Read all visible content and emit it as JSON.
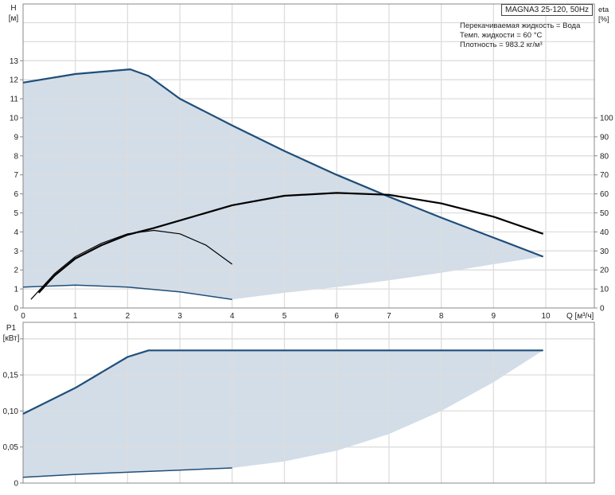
{
  "chart_data": [
    {
      "type": "line",
      "title": "MAGNA3 25-120, 50Hz",
      "annotations": [
        "Перекачиваемая жидкость = Вода",
        "Темп. жидкости = 60 °C",
        "Плотность = 983.2 кг/м³"
      ],
      "xlabel": "Q [м³/ч]",
      "ylabel": "H",
      "ylabel_unit": "[м]",
      "y2label": "eta",
      "y2label_unit": "[%]",
      "xlim": [
        0,
        11.0
      ],
      "ylim": [
        0,
        16
      ],
      "y2lim": [
        0,
        160
      ],
      "xticks": [
        0,
        1,
        2,
        3,
        4,
        5,
        6,
        7,
        8,
        9,
        10
      ],
      "yticks": [
        0,
        1,
        2,
        3,
        4,
        5,
        6,
        7,
        8,
        9,
        10,
        11,
        12,
        13
      ],
      "y2ticks": [
        0,
        10,
        20,
        30,
        40,
        50,
        60,
        70,
        80,
        90,
        100
      ],
      "grid": true,
      "colors": {
        "curve": "#1f4e79",
        "fill": "#d2dde8",
        "eta": "#000000"
      },
      "area": {
        "upper": {
          "x": [
            0,
            1,
            2.05,
            2.4,
            3,
            4,
            5,
            6,
            7,
            8,
            9,
            9.95
          ],
          "y": [
            11.85,
            12.3,
            12.55,
            12.2,
            11.0,
            9.6,
            8.25,
            7.0,
            5.85,
            4.75,
            3.7,
            2.7
          ]
        },
        "lower": {
          "x": [
            0,
            1,
            2,
            3,
            4,
            5,
            6,
            7,
            8,
            9,
            9.95
          ],
          "y": [
            1.1,
            1.2,
            1.1,
            0.85,
            0.45,
            0.8,
            1.1,
            1.45,
            1.85,
            2.3,
            2.7
          ]
        }
      },
      "series": [
        {
          "axis": "H",
          "style": "max",
          "x": [
            0,
            1,
            2.05,
            2.4,
            3,
            4,
            5,
            6,
            7,
            8,
            9,
            9.95
          ],
          "y": [
            11.85,
            12.3,
            12.55,
            12.2,
            11.0,
            9.6,
            8.25,
            7.0,
            5.85,
            4.75,
            3.7,
            2.7
          ]
        },
        {
          "axis": "H",
          "style": "min",
          "x": [
            0,
            1,
            2,
            3,
            4
          ],
          "y": [
            1.1,
            1.2,
            1.1,
            0.85,
            0.45
          ]
        },
        {
          "axis": "eta",
          "style": "eta",
          "x": [
            0.3,
            0.6,
            1,
            1.5,
            2,
            2.5,
            3,
            4,
            5,
            6,
            7,
            8,
            9,
            9.95
          ],
          "y": [
            8,
            17,
            26,
            33,
            38.5,
            42,
            46,
            54,
            59,
            60.5,
            59.5,
            55,
            48,
            39
          ]
        },
        {
          "axis": "eta",
          "style": "eta-thin",
          "x": [
            0.15,
            0.6,
            1,
            1.5,
            2,
            2.5,
            3,
            3.5,
            4
          ],
          "y": [
            4.5,
            18,
            27,
            34,
            39,
            40.8,
            39,
            33,
            23
          ]
        }
      ]
    },
    {
      "type": "line",
      "ylabel": "P1",
      "ylabel_unit": "[кВт]",
      "xlim": [
        0,
        11.0
      ],
      "ylim": [
        0,
        0.22
      ],
      "xticks": [
        0,
        1,
        2,
        3,
        4,
        5,
        6,
        7,
        8,
        9,
        10
      ],
      "yticks": [
        "0",
        "0,05",
        "0,10",
        "0,15"
      ],
      "ytick_values": [
        0,
        0.05,
        0.1,
        0.15
      ],
      "grid": true,
      "area": {
        "upper": {
          "x": [
            0,
            1,
            2,
            2.4,
            9.95
          ],
          "y": [
            0.096,
            0.132,
            0.175,
            0.184,
            0.184
          ]
        },
        "lower": {
          "x": [
            0,
            1,
            2,
            3,
            4,
            5,
            6,
            7,
            8,
            9,
            9.95
          ],
          "y": [
            0.008,
            0.012,
            0.015,
            0.018,
            0.021,
            0.03,
            0.045,
            0.068,
            0.1,
            0.14,
            0.184
          ]
        }
      },
      "series": [
        {
          "style": "max",
          "x": [
            0,
            1,
            2,
            2.4,
            9.95
          ],
          "y": [
            0.096,
            0.132,
            0.175,
            0.184,
            0.184
          ]
        },
        {
          "style": "min",
          "x": [
            0,
            1,
            2,
            3,
            4
          ],
          "y": [
            0.008,
            0.012,
            0.015,
            0.018,
            0.021
          ]
        }
      ]
    }
  ]
}
